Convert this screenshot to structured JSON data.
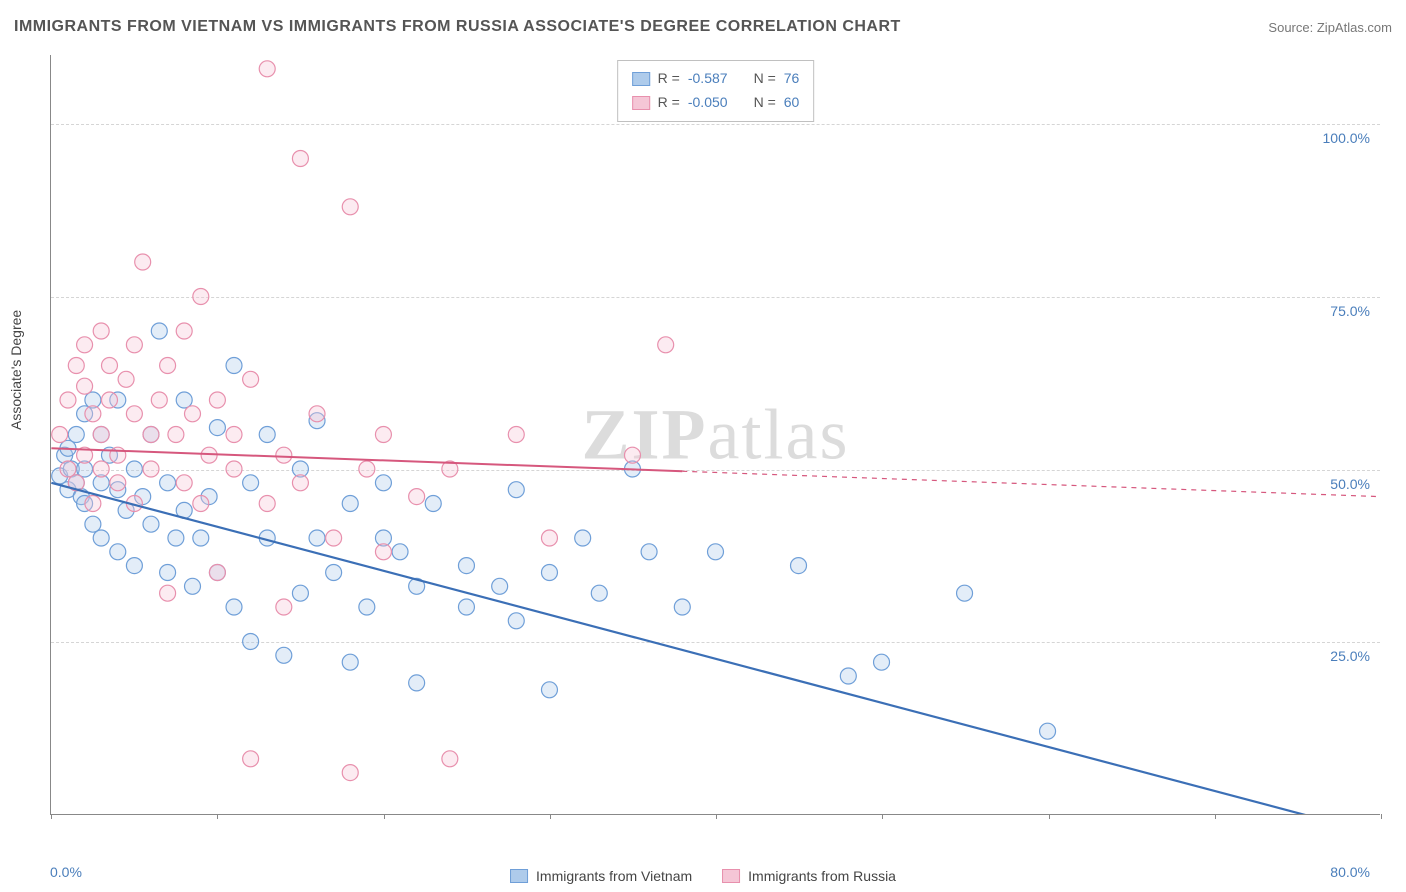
{
  "title": "IMMIGRANTS FROM VIETNAM VS IMMIGRANTS FROM RUSSIA ASSOCIATE'S DEGREE CORRELATION CHART",
  "source_label": "Source:",
  "source_value": "ZipAtlas.com",
  "ylabel": "Associate's Degree",
  "watermark_bold": "ZIP",
  "watermark_light": "atlas",
  "chart": {
    "type": "scatter",
    "xlim": [
      0,
      80
    ],
    "ylim": [
      0,
      110
    ],
    "xticks_visible": [
      0,
      80
    ],
    "xtick_labels": {
      "left": "0.0%",
      "right": "80.0%"
    },
    "xtick_minor_count": 8,
    "yticks": [
      25,
      50,
      75,
      100
    ],
    "ytick_labels": [
      "25.0%",
      "50.0%",
      "75.0%",
      "100.0%"
    ],
    "grid_color": "#d5d5d5",
    "background_color": "#ffffff",
    "axis_color": "#888888",
    "tick_label_color": "#4a7ebb",
    "marker_radius": 8,
    "marker_stroke_width": 1.2,
    "marker_fill_opacity": 0.35,
    "series": [
      {
        "name": "Immigrants from Vietnam",
        "color_fill": "#aecbeb",
        "color_stroke": "#6f9fd8",
        "R": "-0.587",
        "N": "76",
        "trend": {
          "x1": 0,
          "y1": 48,
          "x2": 80,
          "y2": -3,
          "solid_until_x": 78,
          "line_color": "#3b6fb6",
          "line_width": 2.2
        },
        "points": [
          [
            0.5,
            49
          ],
          [
            0.8,
            52
          ],
          [
            1,
            47
          ],
          [
            1,
            53
          ],
          [
            1.2,
            50
          ],
          [
            1.5,
            48
          ],
          [
            1.5,
            55
          ],
          [
            1.8,
            46
          ],
          [
            2,
            50
          ],
          [
            2,
            58
          ],
          [
            2,
            45
          ],
          [
            2.5,
            60
          ],
          [
            2.5,
            42
          ],
          [
            3,
            48
          ],
          [
            3,
            55
          ],
          [
            3,
            40
          ],
          [
            3.5,
            52
          ],
          [
            4,
            47
          ],
          [
            4,
            60
          ],
          [
            4,
            38
          ],
          [
            4.5,
            44
          ],
          [
            5,
            50
          ],
          [
            5,
            36
          ],
          [
            5.5,
            46
          ],
          [
            6,
            42
          ],
          [
            6,
            55
          ],
          [
            6.5,
            70
          ],
          [
            7,
            48
          ],
          [
            7,
            35
          ],
          [
            7.5,
            40
          ],
          [
            8,
            44
          ],
          [
            8,
            60
          ],
          [
            8.5,
            33
          ],
          [
            9,
            40
          ],
          [
            9.5,
            46
          ],
          [
            10,
            35
          ],
          [
            10,
            56
          ],
          [
            11,
            65
          ],
          [
            11,
            30
          ],
          [
            12,
            48
          ],
          [
            12,
            25
          ],
          [
            13,
            40
          ],
          [
            13,
            55
          ],
          [
            14,
            23
          ],
          [
            15,
            50
          ],
          [
            15,
            32
          ],
          [
            16,
            40
          ],
          [
            17,
            35
          ],
          [
            18,
            45
          ],
          [
            18,
            22
          ],
          [
            19,
            30
          ],
          [
            20,
            40
          ],
          [
            20,
            48
          ],
          [
            21,
            38
          ],
          [
            22,
            33
          ],
          [
            22,
            19
          ],
          [
            23,
            45
          ],
          [
            25,
            36
          ],
          [
            25,
            30
          ],
          [
            27,
            33
          ],
          [
            28,
            47
          ],
          [
            28,
            28
          ],
          [
            30,
            35
          ],
          [
            30,
            18
          ],
          [
            32,
            40
          ],
          [
            33,
            32
          ],
          [
            35,
            50
          ],
          [
            36,
            38
          ],
          [
            38,
            30
          ],
          [
            40,
            38
          ],
          [
            45,
            36
          ],
          [
            50,
            22
          ],
          [
            55,
            32
          ],
          [
            60,
            12
          ],
          [
            48,
            20
          ],
          [
            16,
            57
          ]
        ]
      },
      {
        "name": "Immigrants from Russia",
        "color_fill": "#f5c6d6",
        "color_stroke": "#e890ad",
        "R": "-0.050",
        "N": "60",
        "trend": {
          "x1": 0,
          "y1": 53,
          "x2": 80,
          "y2": 46,
          "solid_until_x": 38,
          "line_color": "#d6577d",
          "line_width": 2,
          "dash": "5,5"
        },
        "points": [
          [
            0.5,
            55
          ],
          [
            1,
            60
          ],
          [
            1,
            50
          ],
          [
            1.5,
            65
          ],
          [
            1.5,
            48
          ],
          [
            2,
            62
          ],
          [
            2,
            52
          ],
          [
            2,
            68
          ],
          [
            2.5,
            58
          ],
          [
            2.5,
            45
          ],
          [
            3,
            55
          ],
          [
            3,
            70
          ],
          [
            3,
            50
          ],
          [
            3.5,
            60
          ],
          [
            3.5,
            65
          ],
          [
            4,
            52
          ],
          [
            4,
            48
          ],
          [
            4.5,
            63
          ],
          [
            5,
            58
          ],
          [
            5,
            68
          ],
          [
            5,
            45
          ],
          [
            5.5,
            80
          ],
          [
            6,
            55
          ],
          [
            6,
            50
          ],
          [
            6.5,
            60
          ],
          [
            7,
            65
          ],
          [
            7,
            32
          ],
          [
            7.5,
            55
          ],
          [
            8,
            48
          ],
          [
            8,
            70
          ],
          [
            8.5,
            58
          ],
          [
            9,
            45
          ],
          [
            9,
            75
          ],
          [
            9.5,
            52
          ],
          [
            10,
            60
          ],
          [
            10,
            35
          ],
          [
            11,
            55
          ],
          [
            11,
            50
          ],
          [
            12,
            63
          ],
          [
            12,
            8
          ],
          [
            13,
            45
          ],
          [
            13,
            108
          ],
          [
            14,
            52
          ],
          [
            14,
            30
          ],
          [
            15,
            95
          ],
          [
            15,
            48
          ],
          [
            16,
            58
          ],
          [
            17,
            40
          ],
          [
            18,
            88
          ],
          [
            18,
            6
          ],
          [
            19,
            50
          ],
          [
            20,
            55
          ],
          [
            20,
            38
          ],
          [
            22,
            46
          ],
          [
            24,
            50
          ],
          [
            24,
            8
          ],
          [
            28,
            55
          ],
          [
            30,
            40
          ],
          [
            35,
            52
          ],
          [
            37,
            68
          ]
        ]
      }
    ],
    "legend_top": {
      "R_label": "R =",
      "N_label": "N ="
    },
    "legend_bottom_labels": [
      "Immigrants from Vietnam",
      "Immigrants from Russia"
    ]
  }
}
